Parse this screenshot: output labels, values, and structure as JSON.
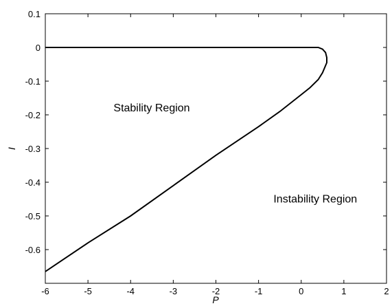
{
  "chart_data": {
    "type": "line",
    "title": "",
    "xlabel": "P",
    "ylabel": "I",
    "xlim": [
      -6,
      2
    ],
    "ylim": [
      -0.7,
      0.1
    ],
    "xticks": [
      -6,
      -5,
      -4,
      -3,
      -2,
      -1,
      0,
      1,
      2
    ],
    "yticks": [
      0.1,
      0,
      -0.1,
      -0.2,
      -0.3,
      -0.4,
      -0.5,
      -0.6
    ],
    "xtick_labels": [
      "-6",
      "-5",
      "-4",
      "-3",
      "-2",
      "-1",
      "0",
      "1",
      "2"
    ],
    "ytick_labels": [
      "0.1",
      "0",
      "-0.1",
      "-0.2",
      "-0.3",
      "-0.4",
      "-0.5",
      "-0.6"
    ],
    "grid": false,
    "series": [
      {
        "color": "#000000",
        "x": [
          -6,
          -5,
          -4,
          -3,
          -2,
          -1,
          0,
          0.4,
          0.5,
          0.57,
          0.6,
          0.6,
          0.5,
          0.4,
          0.2,
          0,
          -0.5,
          -1,
          -2,
          -3,
          -4,
          -5,
          -6
        ],
        "y": [
          0,
          0,
          0,
          0,
          0,
          0,
          0,
          0,
          -0.005,
          -0.015,
          -0.03,
          -0.045,
          -0.075,
          -0.095,
          -0.12,
          -0.14,
          -0.19,
          -0.235,
          -0.32,
          -0.41,
          -0.5,
          -0.58,
          -0.665
        ]
      }
    ],
    "annotations": [
      {
        "text": "Stability Region",
        "x": -4.4,
        "y": -0.19
      },
      {
        "text": "Instability Region",
        "x": -0.65,
        "y": -0.46
      }
    ]
  }
}
